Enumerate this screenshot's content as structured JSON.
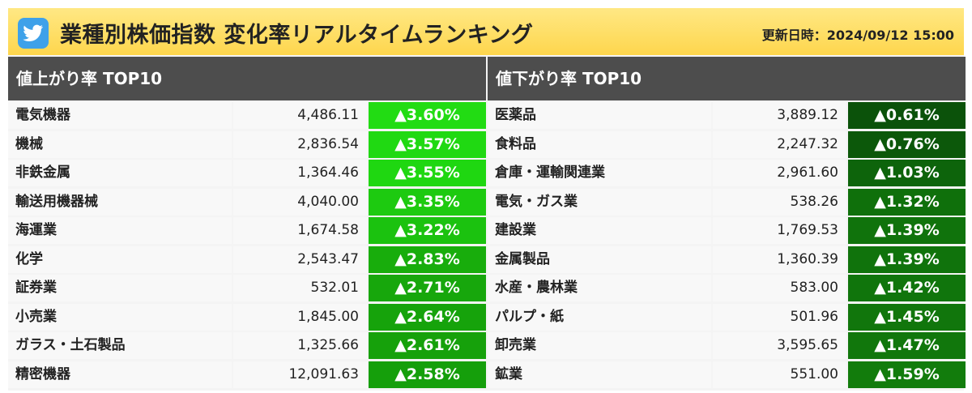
{
  "header": {
    "title": "業種別株価指数 変化率リアルタイムランキング",
    "updated_label": "更新日時：",
    "updated_value": "2024/09/12 15:00",
    "icon": "twitter-bird-icon"
  },
  "gainers": {
    "title": "値上がり率 TOP10",
    "rows": [
      {
        "name": "電気機器",
        "value": "4,486.11",
        "change": "▲3.60%",
        "color": "#22dc13"
      },
      {
        "name": "機械",
        "value": "2,836.54",
        "change": "▲3.57%",
        "color": "#20d912"
      },
      {
        "name": "非鉄金属",
        "value": "1,364.46",
        "change": "▲3.55%",
        "color": "#1fd711"
      },
      {
        "name": "輸送用機器械",
        "value": "4,040.00",
        "change": "▲3.35%",
        "color": "#1dca10"
      },
      {
        "name": "海運業",
        "value": "1,674.58",
        "change": "▲3.22%",
        "color": "#1bc20f"
      },
      {
        "name": "化学",
        "value": "2,543.47",
        "change": "▲2.83%",
        "color": "#18ad0c"
      },
      {
        "name": "証券業",
        "value": "532.01",
        "change": "▲2.71%",
        "color": "#17a70c"
      },
      {
        "name": "小売業",
        "value": "1,845.00",
        "change": "▲2.64%",
        "color": "#16a30b"
      },
      {
        "name": "ガラス・土石製品",
        "value": "1,325.66",
        "change": "▲2.61%",
        "color": "#16a10b"
      },
      {
        "name": "精密機器",
        "value": "12,091.63",
        "change": "▲2.58%",
        "color": "#159f0b"
      }
    ]
  },
  "losers": {
    "title": "値下がり率 TOP10",
    "rows": [
      {
        "name": "医薬品",
        "value": "3,889.12",
        "change": "▲0.61%",
        "color": "#0b520a"
      },
      {
        "name": "食料品",
        "value": "2,247.32",
        "change": "▲0.76%",
        "color": "#0c580a"
      },
      {
        "name": "倉庫・運輸関連業",
        "value": "2,961.60",
        "change": "▲1.03%",
        "color": "#0d640b"
      },
      {
        "name": "電気・ガス業",
        "value": "538.26",
        "change": "▲1.32%",
        "color": "#0f700b"
      },
      {
        "name": "建設業",
        "value": "1,769.53",
        "change": "▲1.39%",
        "color": "#10730c"
      },
      {
        "name": "金属製品",
        "value": "1,360.39",
        "change": "▲1.39%",
        "color": "#10730c"
      },
      {
        "name": "水産・農林業",
        "value": "583.00",
        "change": "▲1.42%",
        "color": "#10750c"
      },
      {
        "name": "パルプ・紙",
        "value": "501.96",
        "change": "▲1.45%",
        "color": "#11760c"
      },
      {
        "name": "卸売業",
        "value": "3,595.65",
        "change": "▲1.47%",
        "color": "#11770c"
      },
      {
        "name": "鉱業",
        "value": "551.00",
        "change": "▲1.59%",
        "color": "#127c0c"
      }
    ]
  }
}
